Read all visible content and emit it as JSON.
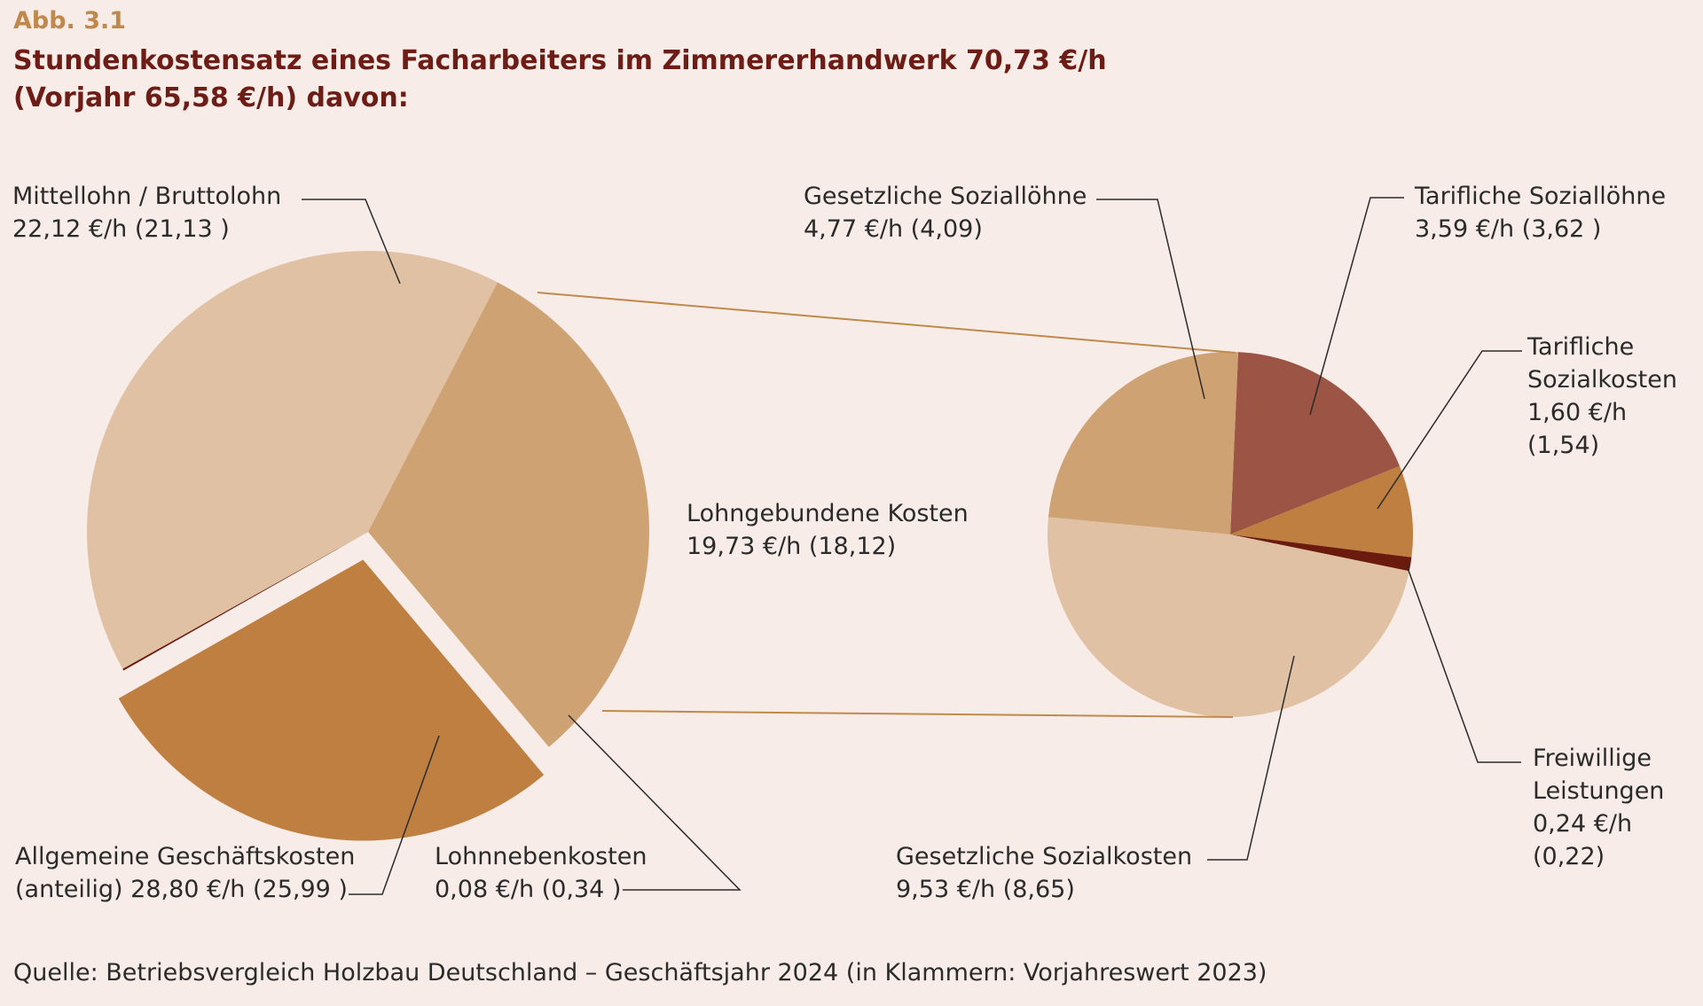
{
  "figure_label": "Abb. 3.1",
  "title_line1": "Stundenkostensatz eines Facharbeiters im Zimmererhandwerk 70,73 €/h",
  "title_line2": "(Vorjahr 65,58 €/h) davon:",
  "source": "Quelle: Betriebsvergleich Holzbau Deutschland – Geschäftsjahr 2024 (in Klammern: Vorjahreswert 2023)",
  "labels": {
    "mittellohn": [
      "Mittellohn / Bruttolohn",
      "22,12 €/h (21,13 )"
    ],
    "lohngebunden": [
      "Lohngebundene Kosten",
      "19,73 €/h (18,12)"
    ],
    "geschaeft": [
      "Allgemeine Geschäftskosten",
      "(anteilig) 28,80 €/h (25,99 )"
    ],
    "lohnneben": [
      "Lohnnebenkosten",
      "0,08 €/h (0,34 )"
    ],
    "ges_sozialloehne": [
      "Gesetzliche Soziallöhne",
      "4,77 €/h (4,09)"
    ],
    "tarif_sozialloehne": [
      "Tarifliche Soziallöhne",
      "3,59 €/h (3,62 )"
    ],
    "tarif_sozialkosten": [
      "Tarifliche",
      "Sozialkosten",
      "1,60 €/h",
      "(1,54)"
    ],
    "freiwillig": [
      "Freiwillige",
      "Leistungen",
      "0,24 €/h",
      "(0,22)"
    ],
    "ges_sozialkosten": [
      "Gesetzliche Sozialkosten",
      "9,53 €/h (8,65)"
    ]
  },
  "colors": {
    "background": "#f7ece7",
    "mittellohn": "#cfa274",
    "lohngebunden": "#be7f40",
    "geschaeft": "#e0c1a4",
    "lohnneben": "#6b1a0e",
    "tarif_sozialloehne": "#9c5444",
    "connector": "#c08a4c",
    "leader": "#2b2b2b"
  },
  "chart_data": [
    {
      "type": "pie",
      "title": "Stundenkostensatz eines Facharbeiters im Zimmererhandwerk 70,73 €/h",
      "unit": "€/h",
      "slices": [
        {
          "label": "Mittellohn / Bruttolohn",
          "value": 22.12,
          "previous": 21.13
        },
        {
          "label": "Lohngebundene Kosten",
          "value": 19.73,
          "previous": 18.12
        },
        {
          "label": "Lohnnebenkosten",
          "value": 0.08,
          "previous": 0.34
        },
        {
          "label": "Allgemeine Geschäftskosten (anteilig)",
          "value": 28.8,
          "previous": 25.99
        }
      ],
      "exploded": "Lohngebundene Kosten"
    },
    {
      "type": "pie",
      "title": "Lohngebundene Kosten",
      "unit": "€/h",
      "slices": [
        {
          "label": "Tarifliche Soziallöhne",
          "value": 3.59,
          "previous": 3.62
        },
        {
          "label": "Tarifliche Sozialkosten",
          "value": 1.6,
          "previous": 1.54
        },
        {
          "label": "Freiwillige Leistungen",
          "value": 0.24,
          "previous": 0.22
        },
        {
          "label": "Gesetzliche Sozialkosten",
          "value": 9.53,
          "previous": 8.65
        },
        {
          "label": "Gesetzliche Soziallöhne",
          "value": 4.77,
          "previous": 4.09
        }
      ]
    }
  ]
}
